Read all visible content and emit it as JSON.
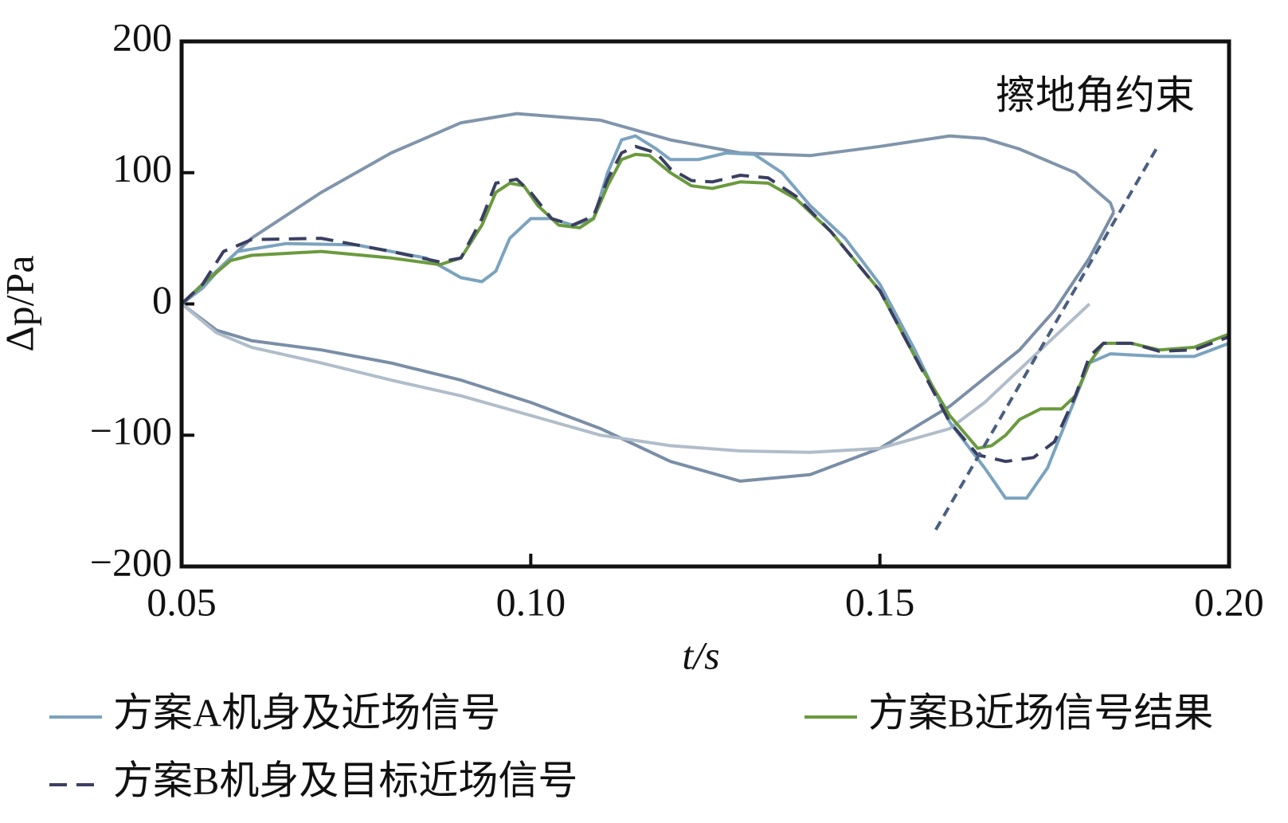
{
  "chart_data": {
    "type": "line",
    "x_label": "t/s",
    "y_label": "Δp/Pa",
    "xlim": [
      0.05,
      0.2
    ],
    "ylim": [
      -200,
      200
    ],
    "xticks": [
      0.05,
      {
        "value": 0.1,
        "label": "0.10"
      },
      0.15,
      {
        "value": 0.2,
        "label": "0.20"
      }
    ],
    "yticks": [
      200,
      100,
      0,
      {
        "value": -100,
        "label": "−100"
      },
      {
        "value": -200,
        "label": "−200"
      }
    ],
    "grid": false,
    "series": [
      {
        "name": "方案A机身及近场信号",
        "color": "#7ba3bf",
        "dashed": false,
        "x": [
          0.05,
          0.053,
          0.056,
          0.058,
          0.065,
          0.075,
          0.085,
          0.09,
          0.093,
          0.095,
          0.097,
          0.1,
          0.103,
          0.106,
          0.109,
          0.111,
          0.113,
          0.115,
          0.118,
          0.12,
          0.124,
          0.128,
          0.132,
          0.136,
          0.14,
          0.145,
          0.15,
          0.155,
          0.16,
          0.165,
          0.168,
          0.171,
          0.174,
          0.177,
          0.18,
          0.183,
          0.19,
          0.195,
          0.2
        ],
        "values": [
          0,
          12,
          30,
          40,
          46,
          45,
          35,
          20,
          17,
          25,
          50,
          65,
          65,
          60,
          65,
          100,
          125,
          128,
          118,
          110,
          110,
          115,
          114,
          100,
          75,
          50,
          15,
          -35,
          -90,
          -125,
          -148,
          -148,
          -125,
          -85,
          -45,
          -38,
          -40,
          -40,
          -30
        ]
      },
      {
        "name": "方案B近场信号结果",
        "color": "#6a9a3e",
        "dashed": false,
        "x": [
          0.05,
          0.053,
          0.057,
          0.06,
          0.07,
          0.08,
          0.087,
          0.09,
          0.093,
          0.095,
          0.097,
          0.099,
          0.101,
          0.104,
          0.107,
          0.109,
          0.111,
          0.113,
          0.115,
          0.117,
          0.12,
          0.123,
          0.126,
          0.13,
          0.134,
          0.138,
          0.143,
          0.15,
          0.155,
          0.16,
          0.164,
          0.166,
          0.168,
          0.17,
          0.173,
          0.176,
          0.178,
          0.18,
          0.182,
          0.186,
          0.19,
          0.195,
          0.2
        ],
        "values": [
          0,
          15,
          33,
          37,
          40,
          35,
          30,
          35,
          60,
          85,
          92,
          90,
          75,
          60,
          58,
          65,
          90,
          110,
          114,
          113,
          100,
          90,
          88,
          93,
          92,
          80,
          55,
          10,
          -40,
          -85,
          -110,
          -108,
          -100,
          -88,
          -80,
          -80,
          -70,
          -45,
          -30,
          -30,
          -35,
          -33,
          -23
        ]
      },
      {
        "name": "方案B机身及目标近场信号",
        "color": "#3a3f62",
        "dashed": true,
        "x": [
          0.05,
          0.053,
          0.056,
          0.06,
          0.07,
          0.08,
          0.087,
          0.09,
          0.093,
          0.095,
          0.098,
          0.1,
          0.103,
          0.106,
          0.109,
          0.111,
          0.113,
          0.115,
          0.118,
          0.12,
          0.123,
          0.126,
          0.13,
          0.134,
          0.138,
          0.143,
          0.15,
          0.155,
          0.16,
          0.164,
          0.168,
          0.172,
          0.175,
          0.178,
          0.18,
          0.182,
          0.186,
          0.19,
          0.195,
          0.2
        ],
        "values": [
          0,
          15,
          40,
          49,
          50,
          40,
          32,
          35,
          65,
          92,
          95,
          85,
          65,
          60,
          67,
          95,
          115,
          120,
          115,
          103,
          94,
          93,
          98,
          96,
          82,
          55,
          10,
          -40,
          -90,
          -115,
          -120,
          -117,
          -105,
          -70,
          -40,
          -30,
          -30,
          -36,
          -35,
          -25
        ]
      },
      {
        "color": "#8095ab",
        "dashed": false,
        "x": [
          0.05,
          0.06,
          0.07,
          0.08,
          0.09,
          0.098,
          0.11,
          0.12,
          0.13,
          0.14,
          0.15,
          0.16,
          0.165,
          0.17,
          0.178,
          0.183,
          0.1835
        ],
        "values": [
          0,
          50,
          85,
          115,
          138,
          145,
          140,
          125,
          115,
          113,
          120,
          128,
          126,
          118,
          100,
          77,
          70
        ]
      },
      {
        "color": "#7a8ea6",
        "dashed": false,
        "x": [
          0.05,
          0.055,
          0.06,
          0.07,
          0.08,
          0.09,
          0.1,
          0.11,
          0.12,
          0.13,
          0.14,
          0.15,
          0.16,
          0.17,
          0.175,
          0.18,
          0.1835
        ],
        "values": [
          0,
          -20,
          -28,
          -35,
          -45,
          -58,
          -75,
          -95,
          -120,
          -135,
          -130,
          -110,
          -78,
          -35,
          -5,
          35,
          70
        ]
      },
      {
        "color": "#b0bdca",
        "dashed": false,
        "x": [
          0.05,
          0.055,
          0.06,
          0.07,
          0.08,
          0.09,
          0.1,
          0.11,
          0.12,
          0.13,
          0.14,
          0.15,
          0.16,
          0.165,
          0.17,
          0.175,
          0.18
        ],
        "values": [
          0,
          -22,
          -33,
          -45,
          -58,
          -70,
          -85,
          -100,
          -108,
          -112,
          -113,
          -110,
          -95,
          -75,
          -50,
          -25,
          0
        ]
      }
    ],
    "annotation": {
      "text": "擦地角约束",
      "color": "#4a5f80",
      "x": [
        0.158,
        0.19
      ],
      "y": [
        -172,
        122
      ]
    }
  }
}
